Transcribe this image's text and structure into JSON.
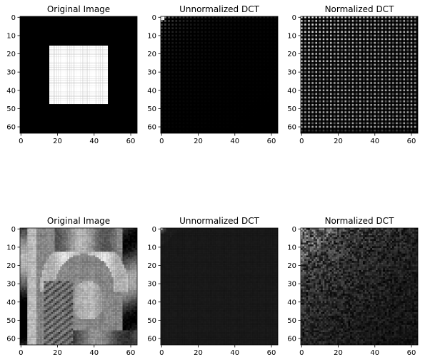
{
  "figure": {
    "background": "#ffffff"
  },
  "chart_data": [
    {
      "type": "heatmap",
      "row": 0,
      "col": 0,
      "title": "Original Image",
      "pattern": "square",
      "content": "white square on black background",
      "square_extent": [
        16,
        47
      ],
      "xlim": [
        0,
        63
      ],
      "ylim": [
        63,
        0
      ],
      "xticks": [
        0,
        20,
        40,
        60
      ],
      "yticks": [
        0,
        10,
        20,
        30,
        40,
        50,
        60
      ],
      "cmap": "gray"
    },
    {
      "type": "heatmap",
      "row": 0,
      "col": 1,
      "title": "Unnormalized DCT",
      "pattern": "dct-square-unnormalized",
      "content": "DCT coefficients of square, mostly black with faint dots near top-left",
      "xlim": [
        0,
        63
      ],
      "ylim": [
        63,
        0
      ],
      "xticks": [
        0,
        20,
        40,
        60
      ],
      "yticks": [
        0,
        10,
        20,
        30,
        40,
        50,
        60
      ],
      "cmap": "gray"
    },
    {
      "type": "heatmap",
      "row": 0,
      "col": 2,
      "title": "Normalized DCT",
      "pattern": "dct-square-normalized",
      "content": "DCT coefficients of square, grid of bright dots at even frequencies",
      "xlim": [
        0,
        63
      ],
      "ylim": [
        63,
        0
      ],
      "xticks": [
        0,
        20,
        40,
        60
      ],
      "yticks": [
        0,
        10,
        20,
        30,
        40,
        50,
        60
      ],
      "cmap": "gray"
    },
    {
      "type": "heatmap",
      "row": 1,
      "col": 0,
      "title": "Original Image",
      "pattern": "photo",
      "content": "grayscale portrait photo, 64x64",
      "xlim": [
        0,
        63
      ],
      "ylim": [
        63,
        0
      ],
      "xticks": [
        0,
        20,
        40,
        60
      ],
      "yticks": [
        0,
        10,
        20,
        30,
        40,
        50,
        60
      ],
      "cmap": "gray"
    },
    {
      "type": "heatmap",
      "row": 1,
      "col": 1,
      "title": "Unnormalized DCT",
      "pattern": "dct-photo-unnormalized",
      "content": "DCT coefficients of photo, near-uniform dark gray",
      "xlim": [
        0,
        63
      ],
      "ylim": [
        63,
        0
      ],
      "xticks": [
        0,
        20,
        40,
        60
      ],
      "yticks": [
        0,
        10,
        20,
        30,
        40,
        50,
        60
      ],
      "cmap": "gray"
    },
    {
      "type": "heatmap",
      "row": 1,
      "col": 2,
      "title": "Normalized DCT",
      "pattern": "dct-photo-normalized",
      "content": "DCT coefficients of photo, noisy texture brighter toward top-left",
      "xlim": [
        0,
        63
      ],
      "ylim": [
        63,
        0
      ],
      "xticks": [
        0,
        20,
        40,
        60
      ],
      "yticks": [
        0,
        10,
        20,
        30,
        40,
        50,
        60
      ],
      "cmap": "gray"
    }
  ]
}
